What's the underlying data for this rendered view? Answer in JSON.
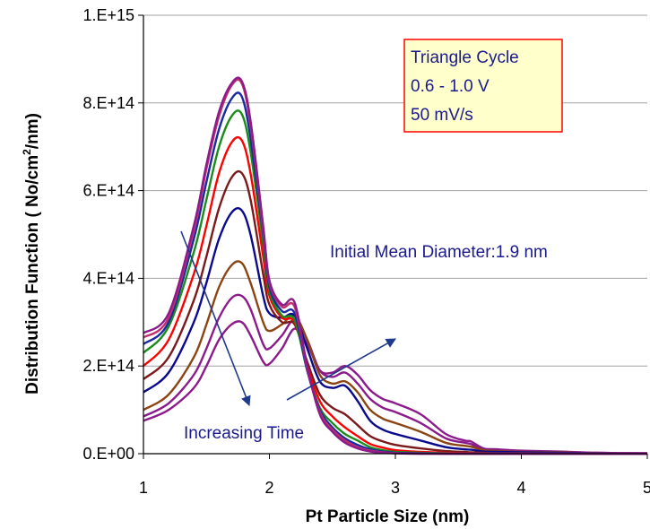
{
  "chart_data": {
    "type": "line",
    "title": "",
    "xlabel": "Pt Particle Size (nm)",
    "ylabel_main": "Distribution Function ( No/cm",
    "ylabel_sup": "2",
    "ylabel_tail": "/nm)",
    "xlim": [
      1,
      5
    ],
    "ylim": [
      0,
      1000000000000000.0
    ],
    "x_ticks": [
      1,
      2,
      3,
      4,
      5
    ],
    "x_tick_labels": [
      "1",
      "2",
      "3",
      "4",
      "5"
    ],
    "y_ticks": [
      0,
      200000000000000.0,
      400000000000000.0,
      600000000000000.0,
      800000000000000.0,
      1000000000000000.0
    ],
    "y_tick_labels": [
      "0.E+00",
      "2.E+14",
      "4.E+14",
      "6.E+14",
      "8.E+14",
      "1.E+15"
    ],
    "grid": "horizontal",
    "legend": "none",
    "x": [
      1.0,
      1.2,
      1.4,
      1.5,
      1.6,
      1.7,
      1.78,
      1.85,
      1.95,
      2.0,
      2.1,
      2.2,
      2.3,
      2.4,
      2.5,
      2.6,
      2.7,
      2.8,
      2.9,
      3.0,
      3.2,
      3.4,
      3.55,
      3.6,
      3.7,
      3.8,
      4.0,
      4.3,
      4.6,
      5.0
    ],
    "series": [
      {
        "color": "#8b1a8b",
        "values": [
          75000000000000.0,
          100000000000000.0,
          150000000000000.0,
          200000000000000.0,
          260000000000000.0,
          295000000000000.0,
          300000000000000.0,
          270000000000000.0,
          210000000000000.0,
          205000000000000.0,
          240000000000000.0,
          285000000000000.0,
          250000000000000.0,
          190000000000000.0,
          185000000000000.0,
          200000000000000.0,
          180000000000000.0,
          145000000000000.0,
          125000000000000.0,
          115000000000000.0,
          90000000000000.0,
          45000000000000.0,
          30000000000000.0,
          28000000000000.0,
          12000000000000.0,
          10000000000000.0,
          7000000000000.0,
          5000000000000.0,
          2000000000000.0,
          1000000000000.0
        ]
      },
      {
        "color": "#8b1a8b",
        "values": [
          85000000000000.0,
          115000000000000.0,
          180000000000000.0,
          240000000000000.0,
          310000000000000.0,
          355000000000000.0,
          360000000000000.0,
          330000000000000.0,
          250000000000000.0,
          240000000000000.0,
          270000000000000.0,
          305000000000000.0,
          260000000000000.0,
          190000000000000.0,
          175000000000000.0,
          185000000000000.0,
          160000000000000.0,
          125000000000000.0,
          105000000000000.0,
          95000000000000.0,
          70000000000000.0,
          35000000000000.0,
          25000000000000.0,
          22000000000000.0,
          10000000000000.0,
          8000000000000.0,
          6000000000000.0,
          4000000000000.0,
          2000000000000.0,
          1000000000000.0
        ]
      },
      {
        "color": "#8b4513",
        "values": [
          100000000000000.0,
          135000000000000.0,
          220000000000000.0,
          295000000000000.0,
          380000000000000.0,
          430000000000000.0,
          435000000000000.0,
          390000000000000.0,
          300000000000000.0,
          280000000000000.0,
          295000000000000.0,
          315000000000000.0,
          260000000000000.0,
          180000000000000.0,
          160000000000000.0,
          165000000000000.0,
          140000000000000.0,
          100000000000000.0,
          80000000000000.0,
          70000000000000.0,
          50000000000000.0,
          25000000000000.0,
          18000000000000.0,
          16000000000000.0,
          8000000000000.0,
          6000000000000.0,
          4000000000000.0,
          3000000000000.0,
          1000000000000.0,
          0.0
        ]
      },
      {
        "color": "#0a0a8c",
        "values": [
          140000000000000.0,
          185000000000000.0,
          300000000000000.0,
          390000000000000.0,
          490000000000000.0,
          550000000000000.0,
          555000000000000.0,
          500000000000000.0,
          360000000000000.0,
          320000000000000.0,
          310000000000000.0,
          315000000000000.0,
          240000000000000.0,
          165000000000000.0,
          150000000000000.0,
          155000000000000.0,
          120000000000000.0,
          75000000000000.0,
          55000000000000.0,
          45000000000000.0,
          30000000000000.0,
          15000000000000.0,
          10000000000000.0,
          9000000000000.0,
          5000000000000.0,
          4000000000000.0,
          3000000000000.0,
          2000000000000.0,
          1000000000000.0,
          0.0
        ]
      },
      {
        "color": "#7a1a1a",
        "values": [
          170000000000000.0,
          220000000000000.0,
          350000000000000.0,
          450000000000000.0,
          560000000000000.0,
          630000000000000.0,
          640000000000000.0,
          580000000000000.0,
          410000000000000.0,
          340000000000000.0,
          300000000000000.0,
          295000000000000.0,
          210000000000000.0,
          135000000000000.0,
          105000000000000.0,
          90000000000000.0,
          65000000000000.0,
          40000000000000.0,
          28000000000000.0,
          20000000000000.0,
          12000000000000.0,
          6000000000000.0,
          4000000000000.0,
          3000000000000.0,
          2000000000000.0,
          1000000000000.0,
          1000000000000.0,
          0.0,
          0.0,
          0.0
        ]
      },
      {
        "color": "#ff0000",
        "values": [
          200000000000000.0,
          260000000000000.0,
          410000000000000.0,
          520000000000000.0,
          640000000000000.0,
          710000000000000.0,
          715000000000000.0,
          640000000000000.0,
          450000000000000.0,
          360000000000000.0,
          310000000000000.0,
          300000000000000.0,
          200000000000000.0,
          120000000000000.0,
          85000000000000.0,
          60000000000000.0,
          40000000000000.0,
          22000000000000.0,
          14000000000000.0,
          8000000000000.0,
          4000000000000.0,
          2000000000000.0,
          1000000000000.0,
          1000000000000.0,
          0.0,
          0.0,
          0.0,
          0.0,
          0.0,
          0.0
        ]
      },
      {
        "color": "#1a8c1a",
        "values": [
          230000000000000.0,
          290000000000000.0,
          460000000000000.0,
          580000000000000.0,
          700000000000000.0,
          770000000000000.0,
          775000000000000.0,
          690000000000000.0,
          480000000000000.0,
          370000000000000.0,
          315000000000000.0,
          305000000000000.0,
          190000000000000.0,
          105000000000000.0,
          70000000000000.0,
          45000000000000.0,
          30000000000000.0,
          15000000000000.0,
          8000000000000.0,
          4000000000000.0,
          2000000000000.0,
          1000000000000.0,
          0.0,
          0.0,
          0.0,
          0.0,
          0.0,
          0.0,
          0.0,
          0.0
        ]
      },
      {
        "color": "#1a2aa0",
        "values": [
          250000000000000.0,
          300000000000000.0,
          490000000000000.0,
          620000000000000.0,
          740000000000000.0,
          810000000000000.0,
          815000000000000.0,
          720000000000000.0,
          500000000000000.0,
          380000000000000.0,
          325000000000000.0,
          320000000000000.0,
          190000000000000.0,
          100000000000000.0,
          60000000000000.0,
          35000000000000.0,
          20000000000000.0,
          10000000000000.0,
          5000000000000.0,
          2000000000000.0,
          1000000000000.0,
          0.0,
          0.0,
          0.0,
          0.0,
          0.0,
          0.0,
          0.0,
          0.0,
          0.0
        ]
      },
      {
        "color": "#c0306a",
        "values": [
          265000000000000.0,
          310000000000000.0,
          510000000000000.0,
          650000000000000.0,
          770000000000000.0,
          840000000000000.0,
          845000000000000.0,
          750000000000000.0,
          510000000000000.0,
          390000000000000.0,
          335000000000000.0,
          335000000000000.0,
          195000000000000.0,
          95000000000000.0,
          55000000000000.0,
          30000000000000.0,
          15000000000000.0,
          7000000000000.0,
          3000000000000.0,
          1000000000000.0,
          0.0,
          0.0,
          0.0,
          0.0,
          0.0,
          0.0,
          0.0,
          0.0,
          0.0,
          0.0
        ]
      },
      {
        "color": "#8b1a8b",
        "values": [
          275000000000000.0,
          320000000000000.0,
          520000000000000.0,
          660000000000000.0,
          780000000000000.0,
          845000000000000.0,
          850000000000000.0,
          760000000000000.0,
          520000000000000.0,
          395000000000000.0,
          340000000000000.0,
          345000000000000.0,
          200000000000000.0,
          90000000000000.0,
          50000000000000.0,
          25000000000000.0,
          12000000000000.0,
          5000000000000.0,
          2000000000000.0,
          1000000000000.0,
          0.0,
          0.0,
          0.0,
          0.0,
          0.0,
          0.0,
          0.0,
          0.0,
          0.0,
          0.0
        ]
      }
    ],
    "annotations": {
      "box_lines": [
        "Triangle Cycle",
        "0.6 - 1.0 V",
        "50 mV/s"
      ],
      "box_fill": "#ffffcc",
      "box_border": "#ff0000",
      "initial_diameter": "Initial Mean Diameter:1.9 nm",
      "increasing_time": "Increasing Time",
      "text_color": "#1a1a8c",
      "arrow_color": "#1f3a8c"
    }
  }
}
